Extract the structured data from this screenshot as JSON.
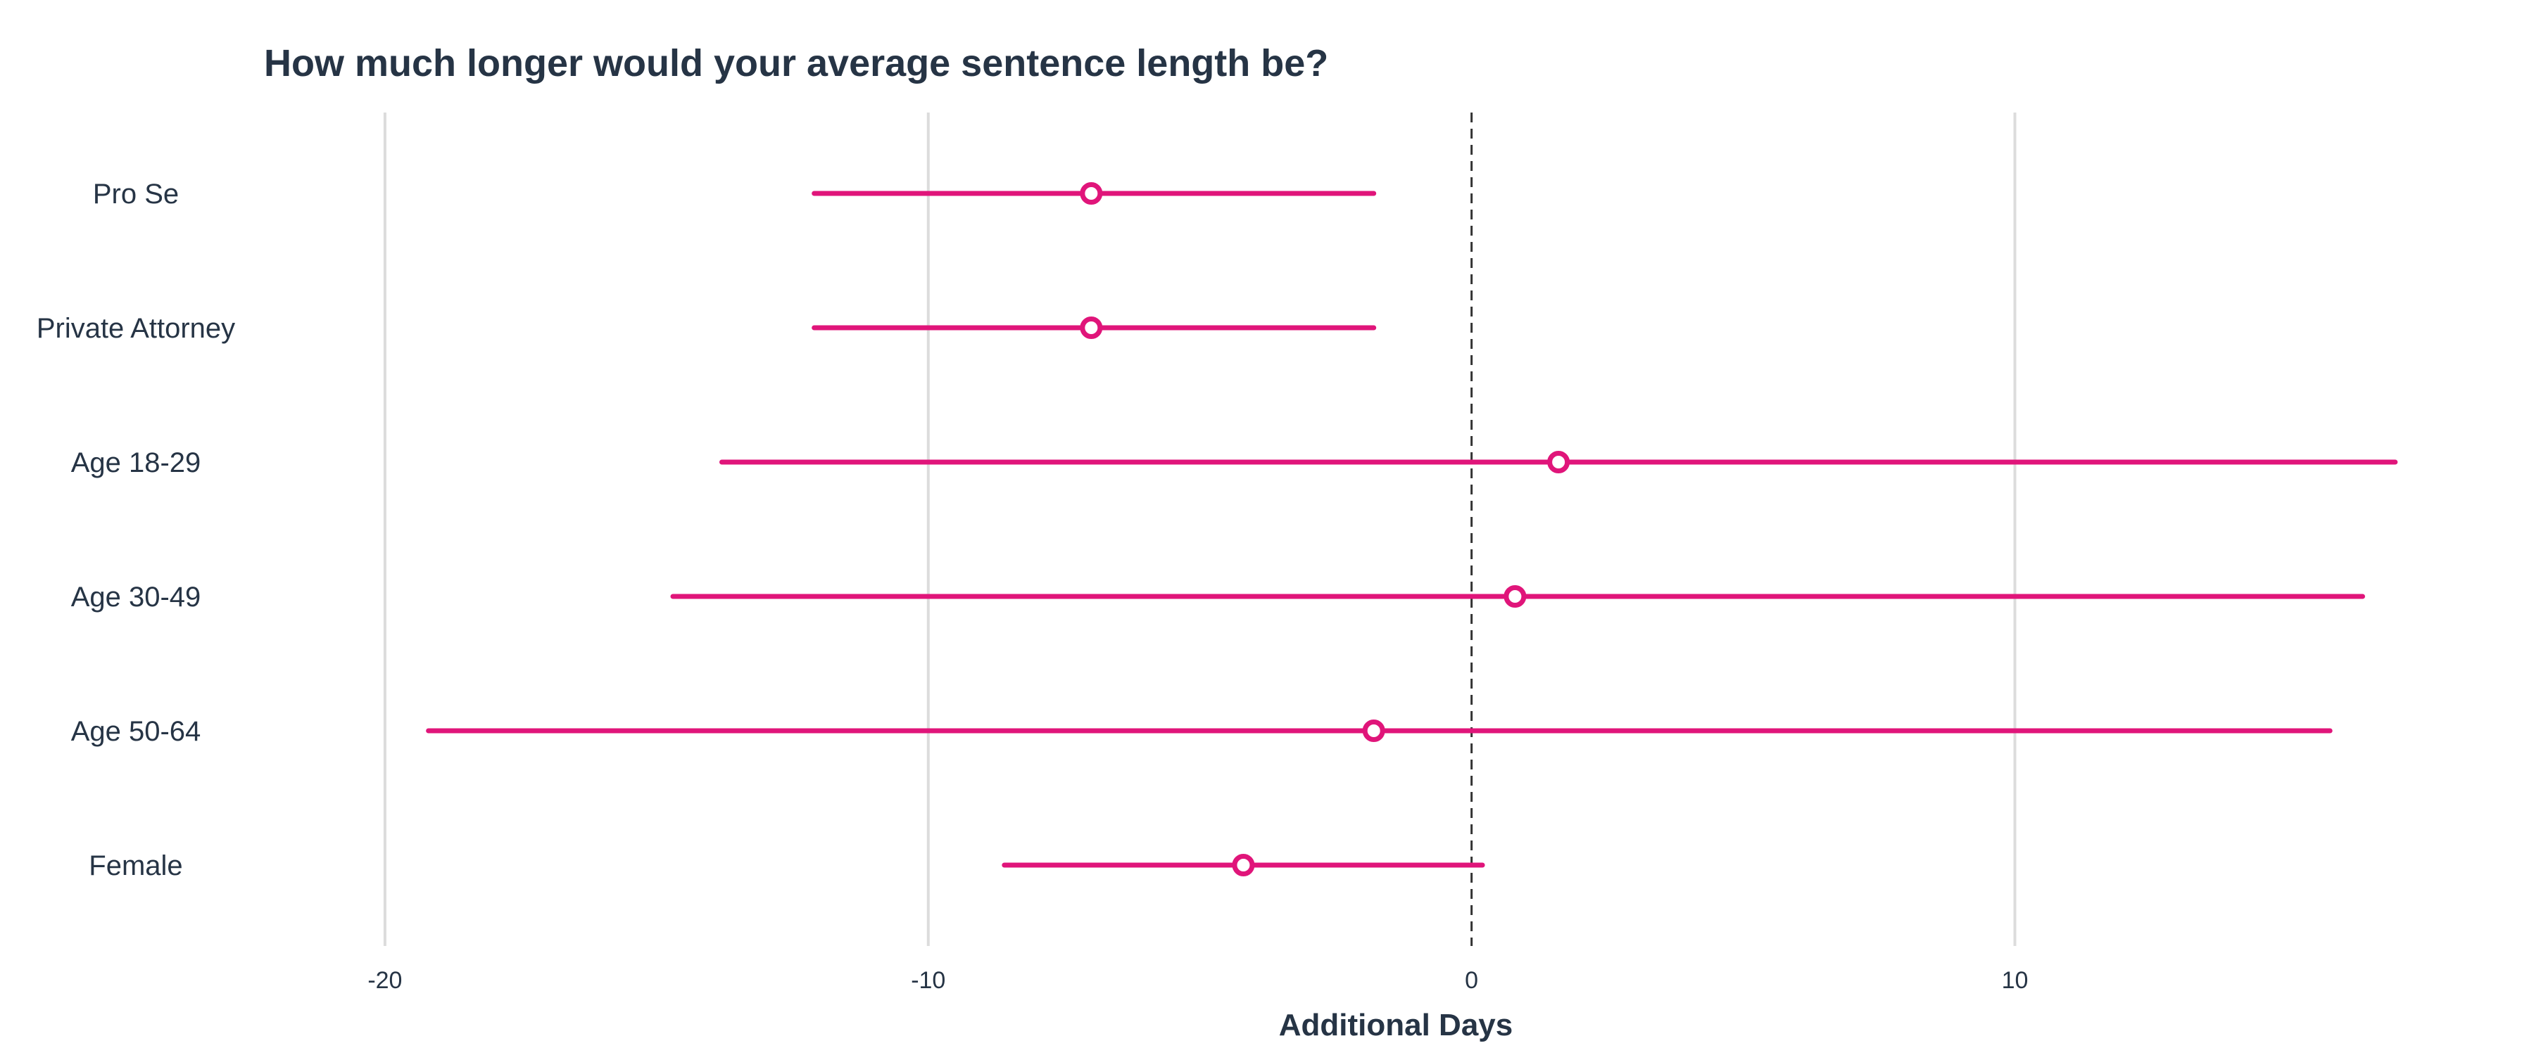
{
  "chart_data": {
    "type": "forest",
    "title": "How much longer would your average sentence length be?",
    "xlabel": "Additional Days",
    "ylabel": "",
    "xlim": [
      -21.1,
      18.0
    ],
    "xticks": [
      -20,
      -10,
      0,
      10
    ],
    "xtick_labels": [
      "-20",
      "-10",
      "0",
      "10"
    ],
    "reference_line": 0,
    "grid": "vertical",
    "legend": "none",
    "colors": {
      "series": "#e0157a",
      "grid": "#dcdcdc",
      "reference": "#333333",
      "text": "#263445"
    },
    "categories": [
      "Pro Se",
      "Private Attorney",
      "Age 18-29",
      "Age 30-49",
      "Age 50-64",
      "Female"
    ],
    "series": [
      {
        "estimate": [
          -7.0,
          -7.0,
          1.6,
          0.8,
          -1.8,
          -4.2
        ],
        "lower": [
          -12.1,
          -12.1,
          -13.8,
          -14.7,
          -19.2,
          -8.6
        ],
        "upper": [
          -1.8,
          -1.8,
          17.0,
          16.4,
          15.8,
          0.2
        ]
      }
    ]
  }
}
